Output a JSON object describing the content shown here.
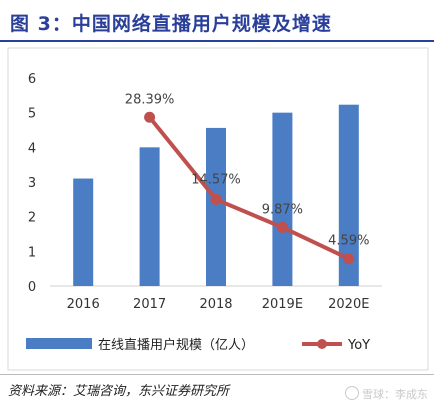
{
  "header": {
    "title": "图 3：中国网络直播用户规模及增速"
  },
  "footer": {
    "source": "资料来源：艾瑞咨询，东兴证券研究所",
    "watermark": "雪球：李成东"
  },
  "colors": {
    "bar": "#4a7dc4",
    "line": "#c0504d",
    "title": "#2a3f9a"
  },
  "chart_data": {
    "type": "bar",
    "categories": [
      "2016",
      "2017",
      "2018",
      "2019E",
      "2020E"
    ],
    "series": [
      {
        "name": "在线直播用户规模（亿人）",
        "type": "bar",
        "values": [
          3.1,
          4.0,
          4.56,
          5.0,
          5.23
        ]
      },
      {
        "name": "YoY",
        "type": "line",
        "values": [
          null,
          28.39,
          14.57,
          9.87,
          4.59
        ]
      }
    ],
    "data_labels": [
      "28.39%",
      "14.57%",
      "9.87%",
      "4.59%"
    ],
    "ylim": [
      0,
      6
    ],
    "yticks": [
      "0",
      "1",
      "2",
      "3",
      "4",
      "5",
      "6"
    ],
    "y2lim": [
      0,
      35
    ],
    "grid": false,
    "legend_position": "bottom"
  }
}
